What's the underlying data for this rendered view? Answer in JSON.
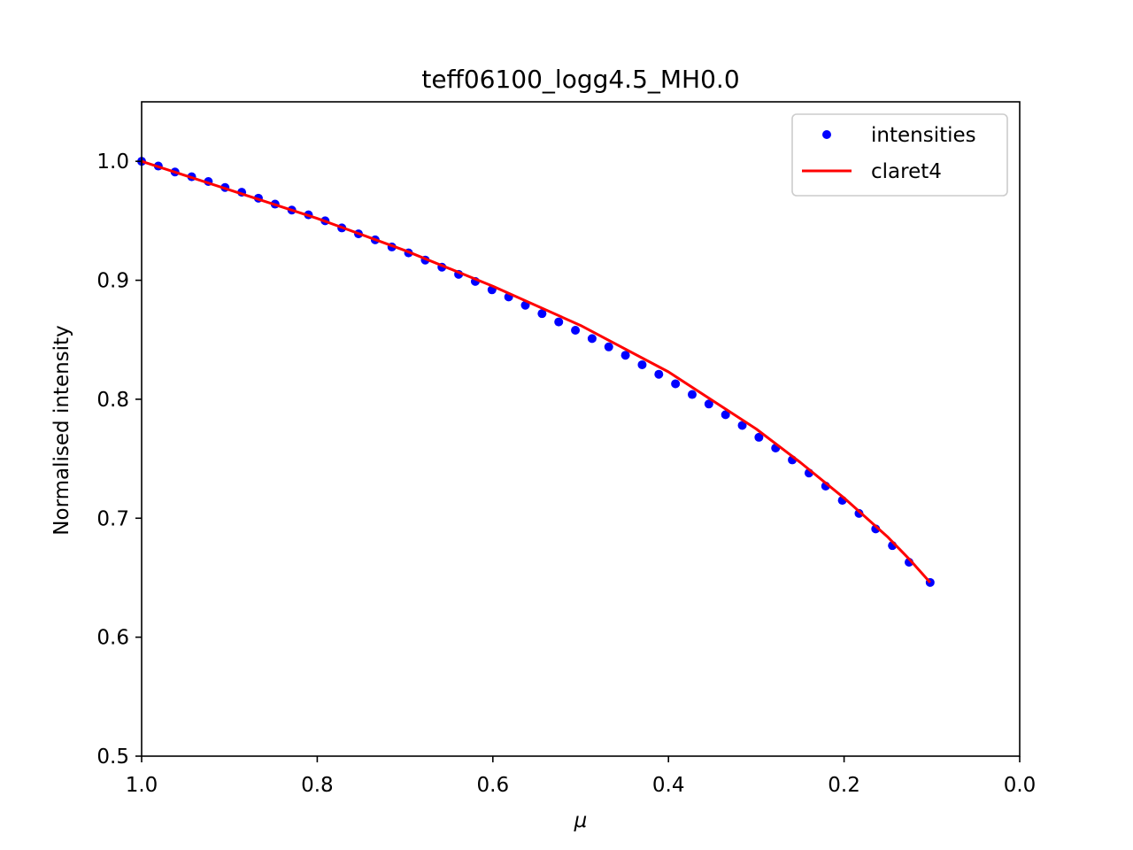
{
  "chart_data": {
    "type": "scatter",
    "title": "teff06100_logg4.5_MH0.0",
    "xlabel": "μ",
    "ylabel": "Normalised intensity",
    "xlim": [
      1.0,
      0.0
    ],
    "ylim": [
      0.5,
      1.05
    ],
    "x_inverted": true,
    "xticks": [
      "1.0",
      "0.8",
      "0.6",
      "0.4",
      "0.2",
      "0.0"
    ],
    "yticks": [
      "0.5",
      "0.6",
      "0.7",
      "0.8",
      "0.9",
      "1.0"
    ],
    "grid": false,
    "legend_position": "top-right",
    "series": [
      {
        "name": "intensities",
        "style": "markers",
        "color": "#0000ff",
        "x": [
          1.0,
          0.981,
          0.962,
          0.943,
          0.924,
          0.905,
          0.886,
          0.867,
          0.848,
          0.829,
          0.81,
          0.791,
          0.772,
          0.753,
          0.734,
          0.715,
          0.696,
          0.677,
          0.658,
          0.639,
          0.62,
          0.601,
          0.582,
          0.563,
          0.544,
          0.525,
          0.506,
          0.487,
          0.468,
          0.449,
          0.43,
          0.411,
          0.392,
          0.373,
          0.354,
          0.335,
          0.316,
          0.297,
          0.278,
          0.259,
          0.24,
          0.221,
          0.202,
          0.183,
          0.164,
          0.145,
          0.126,
          0.102
        ],
        "y": [
          1.0,
          0.996,
          0.991,
          0.987,
          0.983,
          0.978,
          0.974,
          0.969,
          0.964,
          0.959,
          0.955,
          0.95,
          0.944,
          0.939,
          0.934,
          0.928,
          0.923,
          0.917,
          0.911,
          0.905,
          0.899,
          0.892,
          0.886,
          0.879,
          0.872,
          0.865,
          0.858,
          0.851,
          0.844,
          0.837,
          0.829,
          0.821,
          0.813,
          0.804,
          0.796,
          0.787,
          0.778,
          0.768,
          0.759,
          0.749,
          0.738,
          0.727,
          0.715,
          0.704,
          0.691,
          0.677,
          0.663,
          0.646
        ]
      },
      {
        "name": "claret4",
        "style": "line",
        "color": "#ff0000",
        "x": [
          1.0,
          0.9,
          0.8,
          0.7,
          0.6,
          0.5,
          0.4,
          0.3,
          0.25,
          0.2,
          0.15,
          0.125,
          0.102
        ],
        "y": [
          1.0,
          0.976,
          0.952,
          0.925,
          0.895,
          0.862,
          0.823,
          0.775,
          0.747,
          0.717,
          0.684,
          0.665,
          0.646
        ]
      }
    ]
  }
}
